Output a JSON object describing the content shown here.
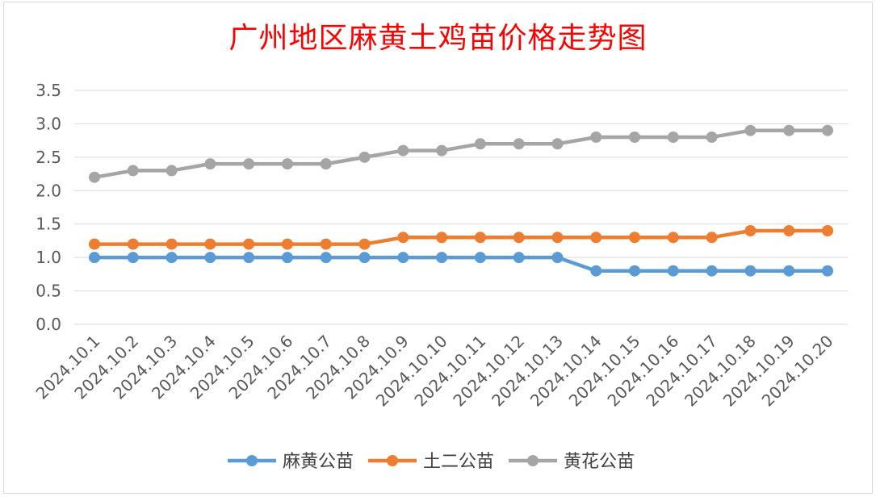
{
  "chart_data": {
    "type": "line",
    "title": "广州地区麻黄土鸡苗价格走势图",
    "xlabel": "",
    "ylabel": "",
    "ylim": [
      0,
      3.5
    ],
    "yticks": [
      "0.0",
      "0.5",
      "1.0",
      "1.5",
      "2.0",
      "2.5",
      "3.0",
      "3.5"
    ],
    "grid": true,
    "legend_position": "bottom",
    "categories": [
      "2024.10.1",
      "2024.10.2",
      "2024.10.3",
      "2024.10.4",
      "2024.10.5",
      "2024.10.6",
      "2024.10.7",
      "2024.10.8",
      "2024.10.9",
      "2024.10.10",
      "2024.10.11",
      "2024.10.12",
      "2024.10.13",
      "2024.10.14",
      "2024.10.15",
      "2024.10.16",
      "2024.10.17",
      "2024.10.18",
      "2024.10.19",
      "2024.10.20"
    ],
    "series": [
      {
        "name": "麻黄公苗",
        "color": "#5b9bd5",
        "values": [
          1.0,
          1.0,
          1.0,
          1.0,
          1.0,
          1.0,
          1.0,
          1.0,
          1.0,
          1.0,
          1.0,
          1.0,
          1.0,
          0.8,
          0.8,
          0.8,
          0.8,
          0.8,
          0.8,
          0.8
        ]
      },
      {
        "name": "土二公苗",
        "color": "#ed7d31",
        "values": [
          1.2,
          1.2,
          1.2,
          1.2,
          1.2,
          1.2,
          1.2,
          1.2,
          1.3,
          1.3,
          1.3,
          1.3,
          1.3,
          1.3,
          1.3,
          1.3,
          1.3,
          1.4,
          1.4,
          1.4
        ]
      },
      {
        "name": "黄花公苗",
        "color": "#a5a5a5",
        "values": [
          2.2,
          2.3,
          2.3,
          2.4,
          2.4,
          2.4,
          2.4,
          2.5,
          2.6,
          2.6,
          2.7,
          2.7,
          2.7,
          2.8,
          2.8,
          2.8,
          2.8,
          2.9,
          2.9,
          2.9
        ]
      }
    ]
  }
}
